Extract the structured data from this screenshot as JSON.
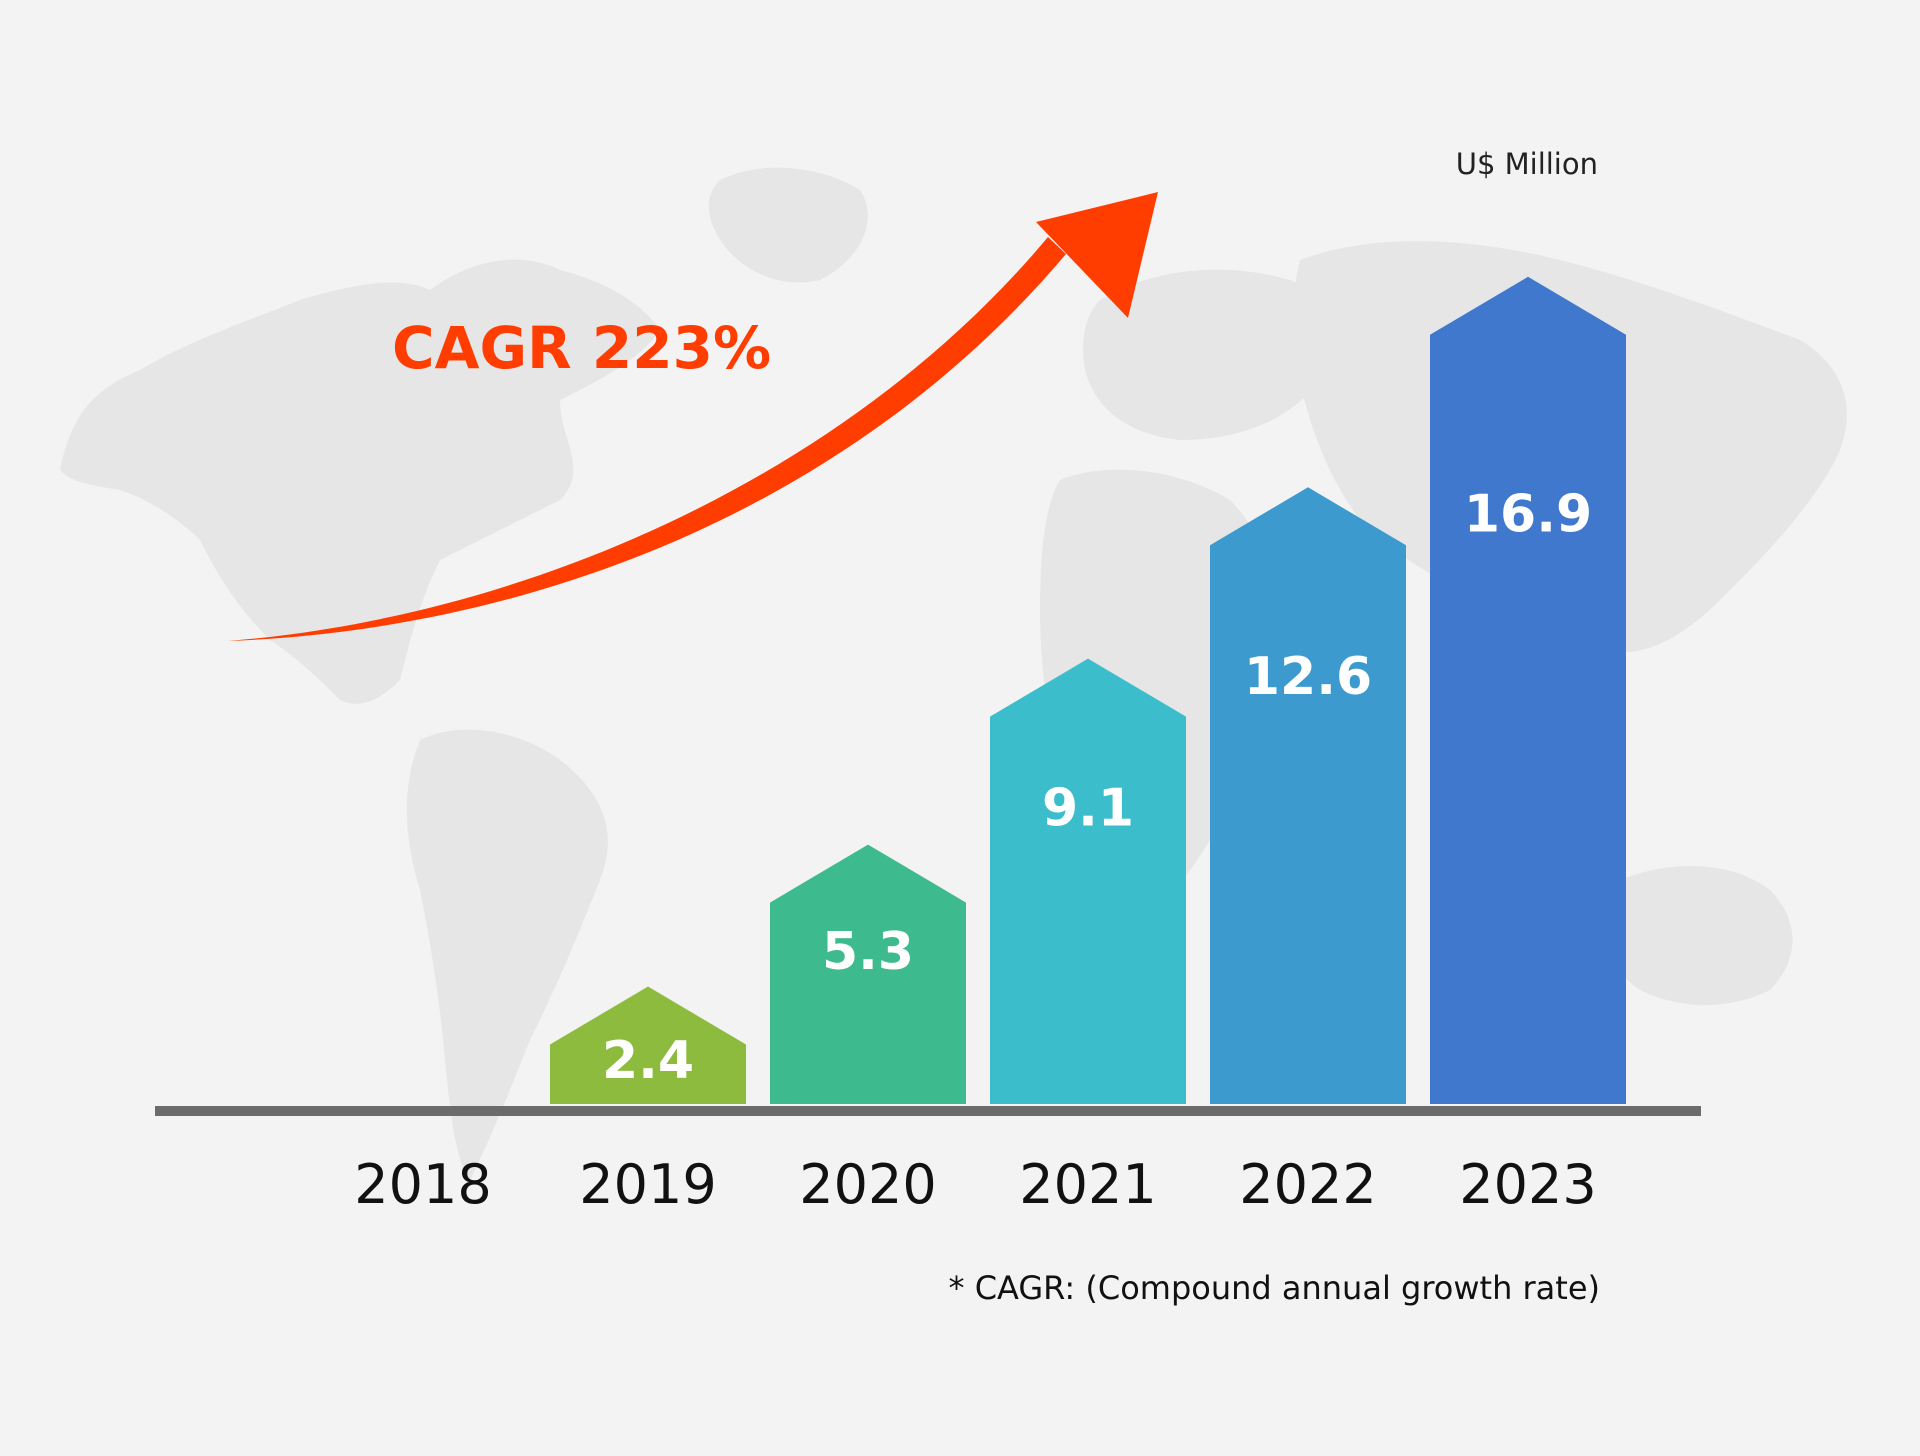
{
  "chart_data": {
    "type": "bar",
    "categories": [
      "2018",
      "2019",
      "2020",
      "2021",
      "2022",
      "2023"
    ],
    "values": [
      null,
      2.4,
      5.3,
      9.1,
      12.6,
      16.9
    ],
    "value_labels": [
      "",
      "2.4",
      "5.3",
      "9.1",
      "12.6",
      "16.9"
    ],
    "unit": "U$ Million",
    "annotation": "CAGR 223%",
    "footnote": "* CAGR: (Compound annual growth rate)",
    "ylim": [
      0,
      19
    ],
    "grid": false,
    "bar_shape": "arrow-top",
    "colors": [
      "#8cbb3e",
      "#8cbb3e",
      "#3dba8e",
      "#3bbdcc",
      "#3d9acf",
      "#3f78cc"
    ],
    "axis_color": "#6b6b6b",
    "annotation_color": "#ff3d00",
    "background": "#f3f3f3",
    "map_color": "#e6e6e6"
  }
}
